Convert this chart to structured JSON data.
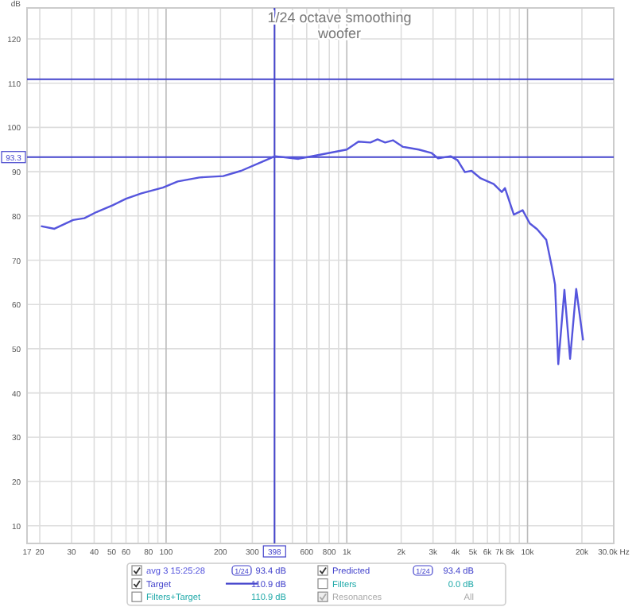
{
  "chart_data": {
    "type": "line",
    "title": "1/24 octave smoothing",
    "subtitle": "woofer",
    "ylabel": "dB",
    "x": [
      20.3,
      24.1,
      30.6,
      35.3,
      41.3,
      50.6,
      60,
      73,
      96,
      116,
      153,
      207,
      260,
      342,
      400,
      540,
      665,
      1000,
      1160,
      1350,
      1480,
      1630,
      1800,
      2050,
      2500,
      2950,
      3200,
      3750,
      4100,
      4500,
      4900,
      5500,
      6500,
      7200,
      7500,
      8400,
      9400,
      10300,
      11300,
      12700,
      13600,
      14200,
      14800,
      16000,
      17200,
      18600,
      20300
    ],
    "series": [
      {
        "name": "avg 3 15:25:28",
        "color": "#5555dd",
        "values": [
          77.7,
          77.1,
          79.1,
          79.5,
          80.9,
          82.4,
          83.9,
          85.1,
          86.4,
          87.8,
          88.7,
          89.0,
          90.2,
          92.3,
          93.5,
          92.9,
          93.6,
          95.0,
          96.8,
          96.6,
          97.3,
          96.6,
          97.1,
          95.6,
          95.0,
          94.2,
          93.0,
          93.5,
          92.6,
          89.9,
          90.2,
          88.5,
          87.2,
          85.4,
          86.3,
          80.3,
          81.3,
          78.3,
          77.0,
          74.6,
          68.7,
          64.5,
          46.5,
          63.3,
          47.7,
          63.5,
          51.9
        ]
      }
    ],
    "xlim": [
      17,
      30000
    ],
    "xticks": [
      17,
      20,
      30,
      40,
      50,
      60,
      {
        "value": 70,
        "label": null
      },
      80,
      {
        "value": 90,
        "label": null
      },
      100,
      200,
      300,
      {
        "value": 400,
        "label": null
      },
      {
        "value": 500,
        "label": null
      },
      600,
      {
        "value": 700,
        "label": null
      },
      800,
      {
        "value": 900,
        "label": null
      },
      {
        "value": 1000,
        "label": "1k"
      },
      {
        "value": 2000,
        "label": "2k"
      },
      {
        "value": 3000,
        "label": "3k"
      },
      {
        "value": 4000,
        "label": "4k"
      },
      {
        "value": 5000,
        "label": "5k"
      },
      {
        "value": 6000,
        "label": "6k"
      },
      {
        "value": 7000,
        "label": "7k"
      },
      {
        "value": 8000,
        "label": "8k"
      },
      {
        "value": 9000,
        "label": null
      },
      {
        "value": 10000,
        "label": "10k"
      },
      {
        "value": 20000,
        "label": "20k"
      },
      {
        "value": 30000,
        "label": "30.0k Hz"
      }
    ],
    "ylim": [
      6,
      127
    ],
    "yticks": [
      10,
      20,
      30,
      40,
      50,
      60,
      70,
      80,
      90,
      100,
      110,
      120
    ],
    "log": "x",
    "grid": true,
    "legend": "bottom",
    "ref_lines": [
      {
        "axis": "y",
        "value": 110.9,
        "label": "Target",
        "color": "#4444cc"
      },
      {
        "axis": "y",
        "value": 93.3,
        "label": "93.3",
        "color": "#4444cc"
      },
      {
        "axis": "x",
        "value": 398,
        "label": "398",
        "color": "#4444cc"
      }
    ],
    "annotations": [
      "1/24",
      "93.4 dB",
      "Predicted",
      "1/24",
      "93.4 dB",
      "110.9 dB",
      "Filters",
      "0.0 dB",
      "Filters+Target",
      "110.9 dB",
      "Resonances",
      "All"
    ]
  }
}
